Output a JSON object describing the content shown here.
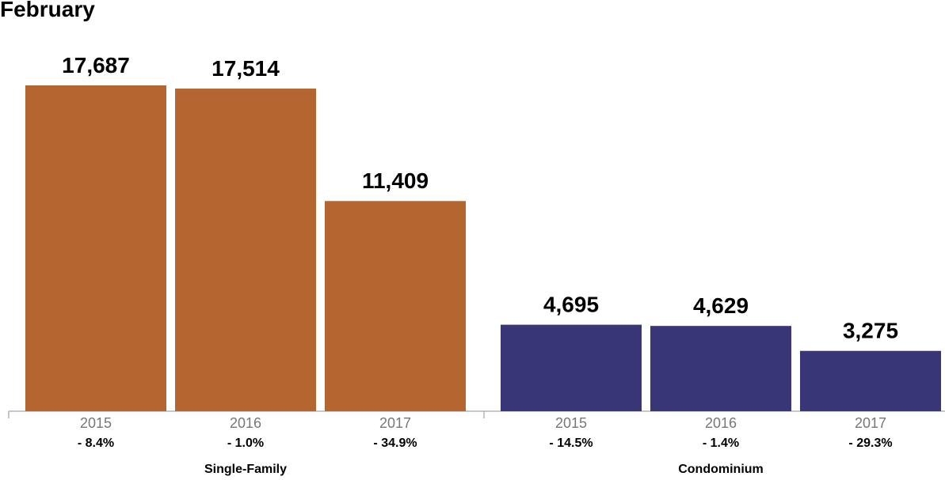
{
  "chart_data": {
    "type": "bar",
    "title": "February",
    "groups": [
      {
        "name": "Single-Family",
        "color": "#b46530",
        "bars": [
          {
            "year": "2015",
            "value": 17687,
            "label": "17,687",
            "change": "- 8.4%"
          },
          {
            "year": "2016",
            "value": 17514,
            "label": "17,514",
            "change": "- 1.0%"
          },
          {
            "year": "2017",
            "value": 11409,
            "label": "11,409",
            "change": "- 34.9%"
          }
        ]
      },
      {
        "name": "Condominium",
        "color": "#383677",
        "bars": [
          {
            "year": "2015",
            "value": 4695,
            "label": "4,695",
            "change": "- 14.5%"
          },
          {
            "year": "2016",
            "value": 4629,
            "label": "4,629",
            "change": "- 1.4%"
          },
          {
            "year": "2017",
            "value": 3275,
            "label": "3,275",
            "change": "- 29.3%"
          }
        ]
      }
    ],
    "ylim": [
      0,
      17687
    ],
    "grid": false,
    "legend": "none"
  }
}
